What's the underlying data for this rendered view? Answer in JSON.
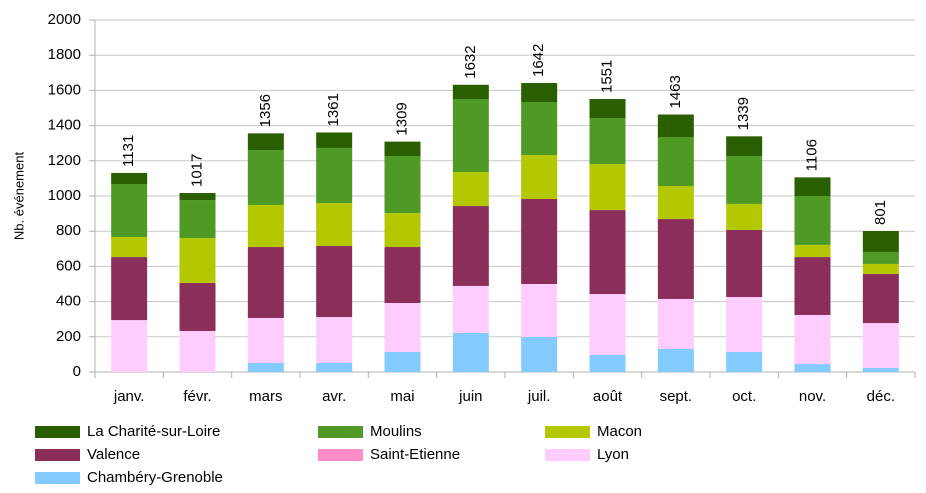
{
  "chart_data": {
    "type": "stacked_bar",
    "y_label": "Nb. événement",
    "categories": [
      "janv.",
      "févr.",
      "mars",
      "avr.",
      "mai",
      "juin",
      "juil.",
      "août",
      "sept.",
      "oct.",
      "nov.",
      "déc."
    ],
    "series": [
      {
        "name": "Chambéry-Grenoble",
        "color": "#83caff",
        "values": [
          0,
          0,
          51,
          51,
          114,
          222,
          199,
          97,
          131,
          114,
          45,
          23
        ]
      },
      {
        "name": "Lyon",
        "color": "#ffccff",
        "values": [
          295,
          233,
          256,
          261,
          278,
          267,
          301,
          346,
          284,
          312,
          279,
          255
        ]
      },
      {
        "name": "Saint-Etienne",
        "color": "#ff8cc8",
        "values": [
          0,
          0,
          0,
          0,
          0,
          0,
          0,
          0,
          0,
          0,
          0,
          0
        ]
      },
      {
        "name": "Valence",
        "color": "#8b2e5a",
        "values": [
          358,
          273,
          403,
          404,
          318,
          454,
          483,
          477,
          454,
          381,
          329,
          279
        ]
      },
      {
        "name": "Macon",
        "color": "#b4c800",
        "values": [
          114,
          255,
          239,
          244,
          193,
          193,
          250,
          262,
          188,
          148,
          69,
          57
        ]
      },
      {
        "name": "Moulins",
        "color": "#4e9a25",
        "values": [
          301,
          216,
          312,
          313,
          324,
          415,
          301,
          261,
          278,
          272,
          278,
          68
        ]
      },
      {
        "name": "La Charité-sur-Loire",
        "color": "#2a5f00",
        "values": [
          63,
          40,
          95,
          88,
          82,
          81,
          108,
          108,
          128,
          112,
          106,
          119
        ]
      }
    ],
    "totals": [
      1131,
      1017,
      1356,
      1361,
      1309,
      1632,
      1642,
      1551,
      1463,
      1339,
      1106,
      801
    ],
    "ylim": [
      0,
      2000
    ],
    "yticks": [
      0,
      200,
      400,
      600,
      800,
      1000,
      1200,
      1400,
      1600,
      1800,
      2000
    ],
    "grid": true,
    "legend": "bottom"
  }
}
